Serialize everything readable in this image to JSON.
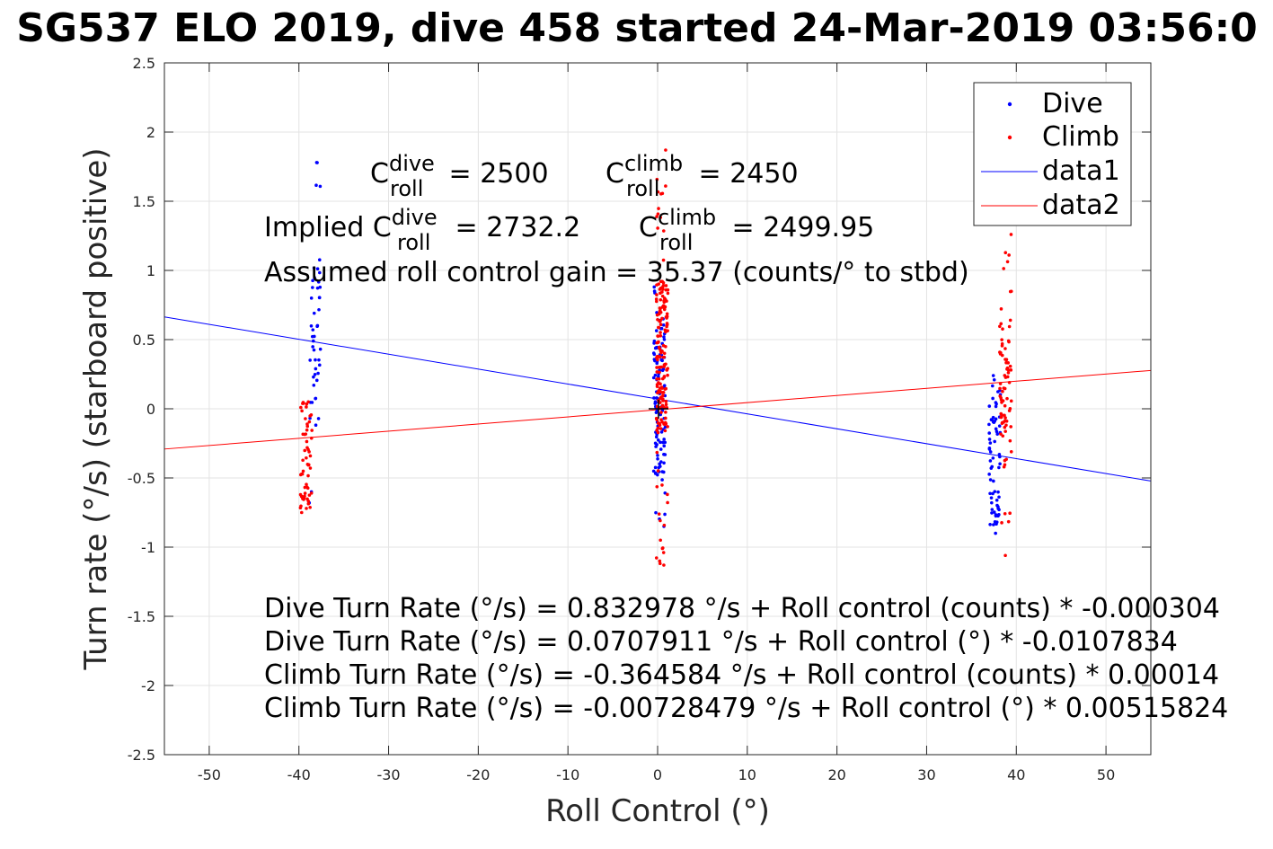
{
  "chart_data": {
    "type": "scatter",
    "title": "SG537 ELO 2019, dive 458 started 24-Mar-2019 03:56:0",
    "xlabel": "Roll Control (°)",
    "ylabel": "Turn rate (°/s) (starboard positive)",
    "xlim": [
      -55,
      55
    ],
    "ylim": [
      -2.5,
      2.5
    ],
    "x_ticks": [
      -50,
      -40,
      -30,
      -20,
      -10,
      0,
      10,
      20,
      30,
      40,
      50
    ],
    "x_tick_labels": [
      "-50",
      "-40",
      "-30",
      "-20",
      "-10",
      "0",
      "10",
      "20",
      "30",
      "40",
      "50"
    ],
    "y_ticks": [
      2.5,
      2,
      1.5,
      1,
      0.5,
      0,
      -0.5,
      -1,
      -1.5,
      -2,
      -2.5
    ],
    "y_tick_labels": [
      "2.5",
      "2",
      "1.5",
      "1",
      "0.5",
      "0",
      "-0.5",
      "-1",
      "-1.5",
      "-2",
      "-2.5"
    ],
    "grid": true,
    "legend_position": "top-right",
    "series": [
      {
        "name": "Dive",
        "kind": "points",
        "color": "#0000ff",
        "clusters": [
          {
            "x": -38.2,
            "y_min": -0.68,
            "y_max": 1.78,
            "n": 48
          },
          {
            "x": 0.2,
            "y_min": -0.85,
            "y_max": 0.88,
            "n": 110
          },
          {
            "x": 37.6,
            "y_min": -0.9,
            "y_max": 0.24,
            "n": 70
          }
        ]
      },
      {
        "name": "Climb",
        "kind": "points",
        "color": "#ff0000",
        "clusters": [
          {
            "x": -39.2,
            "y_min": -0.75,
            "y_max": 0.05,
            "n": 60
          },
          {
            "x": 0.5,
            "y_min": -1.13,
            "y_max": 1.87,
            "n": 180
          },
          {
            "x": 38.8,
            "y_min": -1.06,
            "y_max": 1.26,
            "n": 80
          }
        ]
      },
      {
        "name": "data1",
        "kind": "line",
        "color": "#0000ff",
        "x": [
          -55,
          55
        ],
        "y": [
          0.664,
          -0.522
        ]
      },
      {
        "name": "data2",
        "kind": "line",
        "color": "#ff0000",
        "x": [
          -55,
          55
        ],
        "y": [
          -0.291,
          0.277
        ]
      }
    ],
    "annotations": {
      "c_roll_dive": {
        "C": "C",
        "sup": "dive",
        "sub": "roll",
        "value": " = 2500"
      },
      "c_roll_climb": {
        "C": "C",
        "sup": "climb",
        "sub": "roll",
        "value": " = 2450"
      },
      "implied_dive": {
        "prefix": "Implied C",
        "sup": "dive",
        "sub": "roll",
        "value": " = 2732.2"
      },
      "implied_climb": {
        "C": "C",
        "sup": "climb",
        "sub": "roll",
        "value": " = 2499.95"
      },
      "gain": "Assumed roll control gain = 35.37 (counts/° to stbd)",
      "fit_lines": [
        "Dive Turn Rate (°/s) = 0.832978 °/s + Roll control (counts) * -0.000304",
        "Dive Turn Rate (°/s) = 0.0707911 °/s + Roll control (°) * -0.0107834",
        "Climb Turn Rate (°/s) = -0.364584 °/s + Roll control (counts) * 0.00014",
        "Climb Turn Rate (°/s) = -0.00728479 °/s + Roll control (°) * 0.00515824"
      ]
    }
  }
}
